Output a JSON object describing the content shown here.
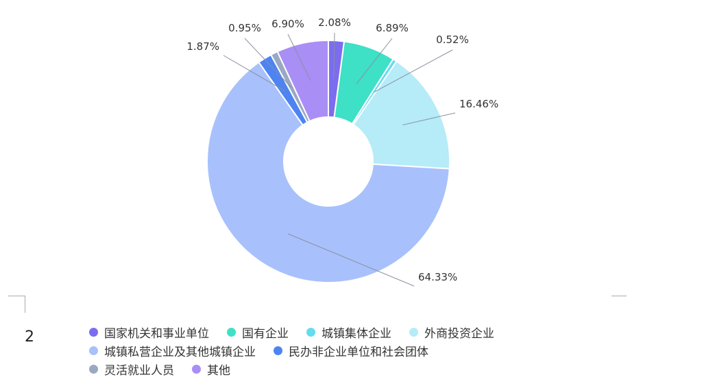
{
  "chart_data": {
    "type": "pie",
    "donut": true,
    "categories": [
      "国家机关和事业单位",
      "国有企业",
      "城镇集体企业",
      "外商投资企业",
      "城镇私营企业及其他城镇企业",
      "民办非企业单位和社会团体",
      "灵活就业人员",
      "其他"
    ],
    "values": [
      2.08,
      6.89,
      0.52,
      16.46,
      64.33,
      1.87,
      0.95,
      6.9
    ],
    "labels": [
      "2.08%",
      "6.89%",
      "0.52%",
      "16.46%",
      "64.33%",
      "1.87%",
      "0.95%",
      "6.90%"
    ],
    "colors": [
      "#7b6cf0",
      "#3ee0c6",
      "#63dcf1",
      "#b6ebf8",
      "#a8c1fc",
      "#4d84f2",
      "#9aa8c2",
      "#a98ef5"
    ],
    "legend_position": "bottom"
  },
  "page_number": "2"
}
